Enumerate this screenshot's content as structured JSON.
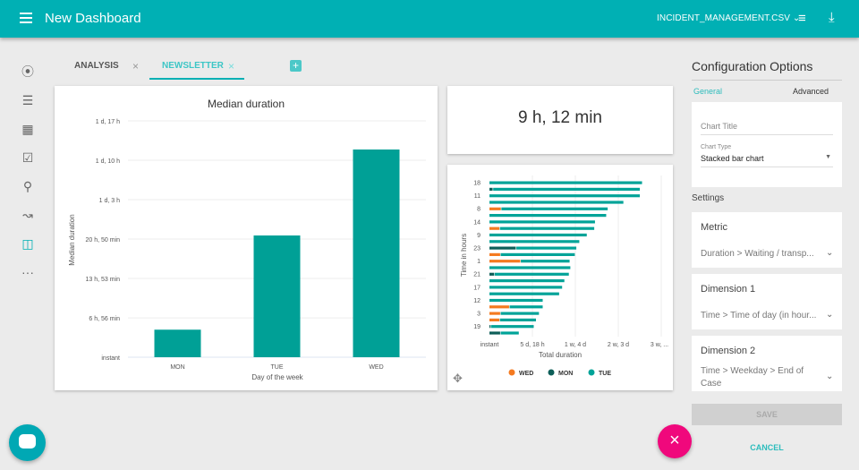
{
  "header": {
    "title": "New Dashboard",
    "file": "INCIDENT_MANAGEMENT.CSV"
  },
  "sidebar": [
    "compass-icon",
    "list-icon",
    "bar-chart-icon",
    "clipboard-check-icon",
    "lightbulb-icon",
    "trend-icon",
    "dashboard-icon",
    "more-icon"
  ],
  "tabs": [
    {
      "label": "ANALYSIS",
      "active": false
    },
    {
      "label": "NEWSLETTER",
      "active": true
    }
  ],
  "kpi": {
    "value": "9 h, 12 min"
  },
  "config": {
    "title": "Configuration Options",
    "tab_general": "General",
    "tab_advanced": "Advanced",
    "chart_title_placeholder": "Chart Title",
    "chart_type_label": "Chart Type",
    "chart_type_value": "Stacked bar chart",
    "settings": "Settings",
    "metric_label": "Metric",
    "metric_value": "Duration > Waiting / transp...",
    "dim1_label": "Dimension 1",
    "dim1_value": "Time > Time of day (in hour...",
    "dim2_label": "Dimension 2",
    "dim2_value": "Time > Weekday > End of Case",
    "save": "SAVE",
    "cancel": "CANCEL"
  },
  "colors": {
    "primary": "#00b0b4",
    "bar": "#00a096",
    "wed": "#f47a20",
    "mon": "#0d5e58",
    "tue": "#00a398",
    "fab": "#f0087c"
  },
  "chart_data": [
    {
      "type": "bar",
      "title": "Median duration",
      "xlabel": "Day of the week",
      "ylabel": "Median duration",
      "categories": [
        "MON",
        "TUE",
        "WED"
      ],
      "values_hours": [
        4.85,
        21.45,
        36.6
      ],
      "yticks": [
        "instant",
        "6 h, 56 min",
        "13 h, 53 min",
        "20 h, 50 min",
        "1 d, 3 h",
        "1 d, 10 h",
        "1 d, 17 h"
      ],
      "ytick_hours": [
        0,
        6.93,
        13.88,
        20.83,
        27.77,
        34.7,
        41.65
      ],
      "grid": true
    },
    {
      "type": "bar",
      "orientation": "horizontal",
      "stacked": true,
      "xlabel": "Total duration",
      "ylabel": "Time in hours",
      "xticks": [
        "instant",
        "5 d, 18 h",
        "1 w, 4 d",
        "2 w, 3 d",
        "3 w, ..."
      ],
      "xtick_days": [
        0,
        5.75,
        11.5,
        17.25,
        23
      ],
      "legend": "bottom",
      "categories": [
        "18",
        "",
        "11",
        "",
        "8",
        "",
        "14",
        "",
        "9",
        "",
        "23",
        "",
        "1",
        "",
        "21",
        "",
        "17",
        "",
        "12",
        "",
        "3",
        "",
        "19",
        ""
      ],
      "series": [
        {
          "name": "WED",
          "values_days": [
            0,
            0,
            0,
            0,
            1.6,
            0,
            0,
            1.4,
            0,
            0,
            0,
            1.5,
            4.2,
            0,
            0,
            0,
            0,
            0,
            0,
            2.7,
            1.5,
            1.4,
            0,
            0
          ]
        },
        {
          "name": "MON",
          "values_days": [
            0,
            0.5,
            0,
            0,
            0,
            0,
            0,
            0,
            0,
            0,
            3.6,
            0,
            0,
            0,
            0.7,
            0,
            0,
            0,
            0,
            0,
            0,
            0,
            0.2,
            1.5
          ]
        },
        {
          "name": "TUE",
          "values_days": [
            20.5,
            19.7,
            20.2,
            18.0,
            14.3,
            15.7,
            14.2,
            12.7,
            13.1,
            12.1,
            8.1,
            10.0,
            6.6,
            10.9,
            10.0,
            10.1,
            9.8,
            9.4,
            7.2,
            4.5,
            5.2,
            4.9,
            5.8,
            2.5
          ]
        }
      ]
    }
  ]
}
